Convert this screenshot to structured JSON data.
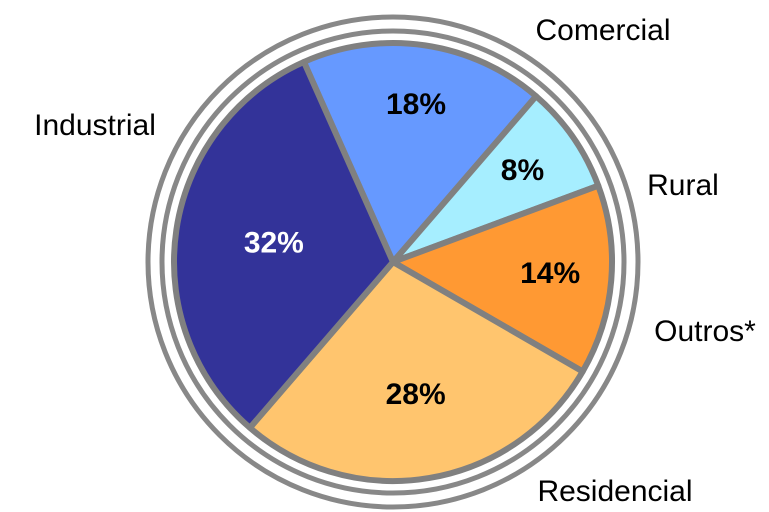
{
  "chart_data": {
    "type": "pie",
    "categories": [
      "Comercial",
      "Rural",
      "Outros*",
      "Residencial",
      "Industrial"
    ],
    "values": [
      18,
      8,
      14,
      28,
      32
    ],
    "value_labels": [
      "18%",
      "8%",
      "14%",
      "28%",
      "32%"
    ],
    "colors": [
      "#6699ff",
      "#a6eeff",
      "#ff9933",
      "#ffc56e",
      "#333399"
    ]
  }
}
